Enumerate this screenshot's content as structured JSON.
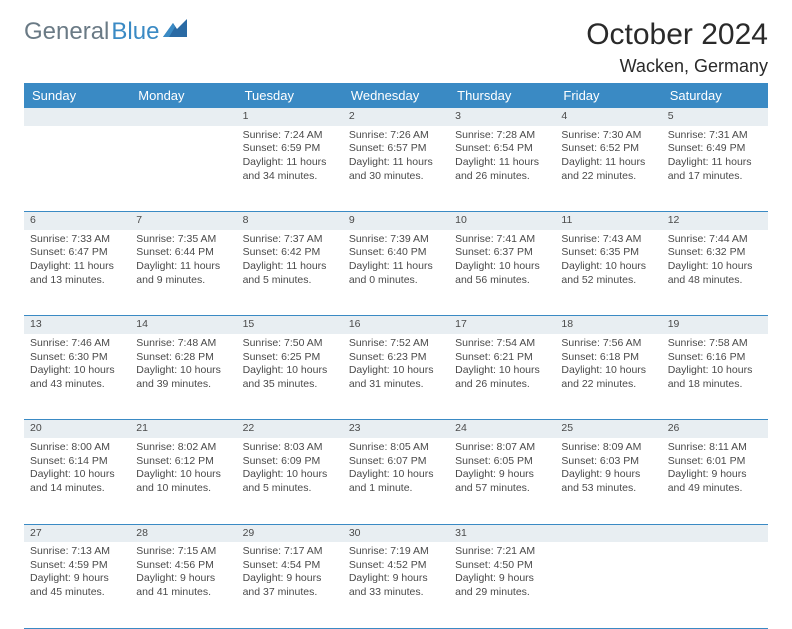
{
  "brand": {
    "part1": "General",
    "part2": "Blue"
  },
  "title": "October 2024",
  "location": "Wacken, Germany",
  "colors": {
    "header_bg": "#3a8ac4",
    "header_text": "#ffffff",
    "daynum_bg": "#e8eef2",
    "daynum_text": "#5a6a7a",
    "cell_text": "#4a4a4a",
    "border": "#3a8ac4"
  },
  "day_headers": [
    "Sunday",
    "Monday",
    "Tuesday",
    "Wednesday",
    "Thursday",
    "Friday",
    "Saturday"
  ],
  "weeks": [
    [
      {
        "num": "",
        "sunrise": "",
        "sunset": "",
        "daylight": ""
      },
      {
        "num": "",
        "sunrise": "",
        "sunset": "",
        "daylight": ""
      },
      {
        "num": "1",
        "sunrise": "Sunrise: 7:24 AM",
        "sunset": "Sunset: 6:59 PM",
        "daylight": "Daylight: 11 hours and 34 minutes."
      },
      {
        "num": "2",
        "sunrise": "Sunrise: 7:26 AM",
        "sunset": "Sunset: 6:57 PM",
        "daylight": "Daylight: 11 hours and 30 minutes."
      },
      {
        "num": "3",
        "sunrise": "Sunrise: 7:28 AM",
        "sunset": "Sunset: 6:54 PM",
        "daylight": "Daylight: 11 hours and 26 minutes."
      },
      {
        "num": "4",
        "sunrise": "Sunrise: 7:30 AM",
        "sunset": "Sunset: 6:52 PM",
        "daylight": "Daylight: 11 hours and 22 minutes."
      },
      {
        "num": "5",
        "sunrise": "Sunrise: 7:31 AM",
        "sunset": "Sunset: 6:49 PM",
        "daylight": "Daylight: 11 hours and 17 minutes."
      }
    ],
    [
      {
        "num": "6",
        "sunrise": "Sunrise: 7:33 AM",
        "sunset": "Sunset: 6:47 PM",
        "daylight": "Daylight: 11 hours and 13 minutes."
      },
      {
        "num": "7",
        "sunrise": "Sunrise: 7:35 AM",
        "sunset": "Sunset: 6:44 PM",
        "daylight": "Daylight: 11 hours and 9 minutes."
      },
      {
        "num": "8",
        "sunrise": "Sunrise: 7:37 AM",
        "sunset": "Sunset: 6:42 PM",
        "daylight": "Daylight: 11 hours and 5 minutes."
      },
      {
        "num": "9",
        "sunrise": "Sunrise: 7:39 AM",
        "sunset": "Sunset: 6:40 PM",
        "daylight": "Daylight: 11 hours and 0 minutes."
      },
      {
        "num": "10",
        "sunrise": "Sunrise: 7:41 AM",
        "sunset": "Sunset: 6:37 PM",
        "daylight": "Daylight: 10 hours and 56 minutes."
      },
      {
        "num": "11",
        "sunrise": "Sunrise: 7:43 AM",
        "sunset": "Sunset: 6:35 PM",
        "daylight": "Daylight: 10 hours and 52 minutes."
      },
      {
        "num": "12",
        "sunrise": "Sunrise: 7:44 AM",
        "sunset": "Sunset: 6:32 PM",
        "daylight": "Daylight: 10 hours and 48 minutes."
      }
    ],
    [
      {
        "num": "13",
        "sunrise": "Sunrise: 7:46 AM",
        "sunset": "Sunset: 6:30 PM",
        "daylight": "Daylight: 10 hours and 43 minutes."
      },
      {
        "num": "14",
        "sunrise": "Sunrise: 7:48 AM",
        "sunset": "Sunset: 6:28 PM",
        "daylight": "Daylight: 10 hours and 39 minutes."
      },
      {
        "num": "15",
        "sunrise": "Sunrise: 7:50 AM",
        "sunset": "Sunset: 6:25 PM",
        "daylight": "Daylight: 10 hours and 35 minutes."
      },
      {
        "num": "16",
        "sunrise": "Sunrise: 7:52 AM",
        "sunset": "Sunset: 6:23 PM",
        "daylight": "Daylight: 10 hours and 31 minutes."
      },
      {
        "num": "17",
        "sunrise": "Sunrise: 7:54 AM",
        "sunset": "Sunset: 6:21 PM",
        "daylight": "Daylight: 10 hours and 26 minutes."
      },
      {
        "num": "18",
        "sunrise": "Sunrise: 7:56 AM",
        "sunset": "Sunset: 6:18 PM",
        "daylight": "Daylight: 10 hours and 22 minutes."
      },
      {
        "num": "19",
        "sunrise": "Sunrise: 7:58 AM",
        "sunset": "Sunset: 6:16 PM",
        "daylight": "Daylight: 10 hours and 18 minutes."
      }
    ],
    [
      {
        "num": "20",
        "sunrise": "Sunrise: 8:00 AM",
        "sunset": "Sunset: 6:14 PM",
        "daylight": "Daylight: 10 hours and 14 minutes."
      },
      {
        "num": "21",
        "sunrise": "Sunrise: 8:02 AM",
        "sunset": "Sunset: 6:12 PM",
        "daylight": "Daylight: 10 hours and 10 minutes."
      },
      {
        "num": "22",
        "sunrise": "Sunrise: 8:03 AM",
        "sunset": "Sunset: 6:09 PM",
        "daylight": "Daylight: 10 hours and 5 minutes."
      },
      {
        "num": "23",
        "sunrise": "Sunrise: 8:05 AM",
        "sunset": "Sunset: 6:07 PM",
        "daylight": "Daylight: 10 hours and 1 minute."
      },
      {
        "num": "24",
        "sunrise": "Sunrise: 8:07 AM",
        "sunset": "Sunset: 6:05 PM",
        "daylight": "Daylight: 9 hours and 57 minutes."
      },
      {
        "num": "25",
        "sunrise": "Sunrise: 8:09 AM",
        "sunset": "Sunset: 6:03 PM",
        "daylight": "Daylight: 9 hours and 53 minutes."
      },
      {
        "num": "26",
        "sunrise": "Sunrise: 8:11 AM",
        "sunset": "Sunset: 6:01 PM",
        "daylight": "Daylight: 9 hours and 49 minutes."
      }
    ],
    [
      {
        "num": "27",
        "sunrise": "Sunrise: 7:13 AM",
        "sunset": "Sunset: 4:59 PM",
        "daylight": "Daylight: 9 hours and 45 minutes."
      },
      {
        "num": "28",
        "sunrise": "Sunrise: 7:15 AM",
        "sunset": "Sunset: 4:56 PM",
        "daylight": "Daylight: 9 hours and 41 minutes."
      },
      {
        "num": "29",
        "sunrise": "Sunrise: 7:17 AM",
        "sunset": "Sunset: 4:54 PM",
        "daylight": "Daylight: 9 hours and 37 minutes."
      },
      {
        "num": "30",
        "sunrise": "Sunrise: 7:19 AM",
        "sunset": "Sunset: 4:52 PM",
        "daylight": "Daylight: 9 hours and 33 minutes."
      },
      {
        "num": "31",
        "sunrise": "Sunrise: 7:21 AM",
        "sunset": "Sunset: 4:50 PM",
        "daylight": "Daylight: 9 hours and 29 minutes."
      },
      {
        "num": "",
        "sunrise": "",
        "sunset": "",
        "daylight": ""
      },
      {
        "num": "",
        "sunrise": "",
        "sunset": "",
        "daylight": ""
      }
    ]
  ]
}
